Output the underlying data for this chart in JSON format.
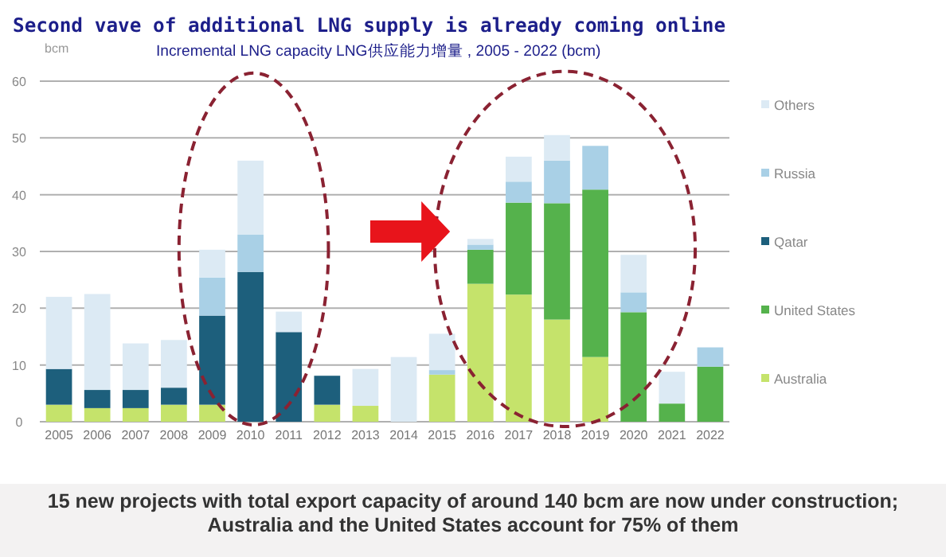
{
  "chart_data": {
    "type": "bar",
    "stacked": true,
    "title": "Second vave of additional LNG supply is already coming online",
    "subtitle": "Incremental LNG capacity LNG供应能力增量 , 2005 - 2022 (bcm)",
    "ylabel": "bcm",
    "categories": [
      "2005",
      "2006",
      "2007",
      "2008",
      "2009",
      "2010",
      "2011",
      "2012",
      "2013",
      "2014",
      "2015",
      "2016",
      "2017",
      "2018",
      "2019",
      "2020",
      "2021",
      "2022"
    ],
    "series": [
      {
        "name": "Australia",
        "color": "#c5e36b",
        "values": [
          3,
          2.4,
          2.4,
          3,
          3,
          0,
          0,
          3,
          2.8,
          0,
          8.3,
          24.3,
          22.4,
          18,
          11.4,
          0,
          0,
          0
        ]
      },
      {
        "name": "United States",
        "color": "#55b24c",
        "values": [
          0,
          0,
          0,
          0,
          0,
          0,
          0,
          0,
          0,
          0,
          0,
          6,
          16.2,
          20.5,
          29.5,
          19.3,
          3.2,
          9.7
        ]
      },
      {
        "name": "Qatar",
        "color": "#1d5f7c",
        "values": [
          6.3,
          3.2,
          3.2,
          3,
          15.7,
          26.4,
          15.8,
          5.1,
          0,
          0,
          0,
          0,
          0,
          0,
          0,
          0,
          0,
          0
        ]
      },
      {
        "name": "Russia",
        "color": "#a9d0e6",
        "values": [
          0,
          0,
          0,
          0,
          6.7,
          6.6,
          0,
          0,
          0,
          0,
          0.8,
          0.9,
          3.7,
          7.5,
          7.7,
          3.5,
          0,
          3.4
        ]
      },
      {
        "name": "Others",
        "color": "#dceaf4",
        "values": [
          12.7,
          16.9,
          8.2,
          8.4,
          4.9,
          13,
          3.6,
          0,
          6.5,
          11.4,
          6.4,
          1,
          4.4,
          4.5,
          0,
          6.6,
          5.6,
          0
        ]
      }
    ],
    "ylim": [
      0,
      60
    ],
    "yticks": [
      0,
      10,
      20,
      30,
      40,
      50,
      60
    ],
    "grid": "y",
    "legend": "right",
    "annotations": [
      "15 new projects with total export capacity of around 140 bcm are now under construction; Australia and the United States account for 75% of them"
    ]
  }
}
